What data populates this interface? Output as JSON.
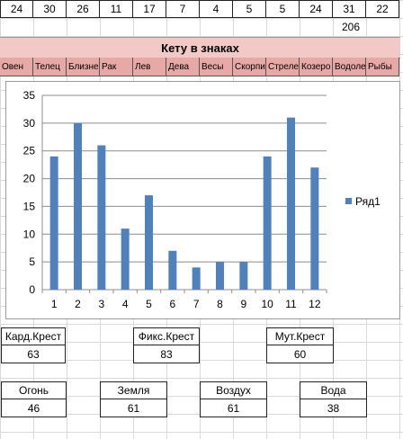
{
  "numbers_row": [
    "24",
    "30",
    "26",
    "11",
    "17",
    "7",
    "4",
    "5",
    "5",
    "24",
    "31",
    "22"
  ],
  "extra_value": "206",
  "banner": "Кету в знаках",
  "signs": [
    "Овен",
    "Телец",
    "Близне",
    "Рак",
    "Лев",
    "Дева",
    "Весы",
    "Скорпи",
    "Стреле",
    "Козеро",
    "Водоле",
    "Рыбы"
  ],
  "colors": {
    "bar": "#4f81bd",
    "band": "#f2c9c6",
    "signs_bg": "#e6a9a6"
  },
  "chart_data": {
    "type": "bar",
    "categories": [
      "1",
      "2",
      "3",
      "4",
      "5",
      "6",
      "7",
      "8",
      "9",
      "10",
      "11",
      "12"
    ],
    "series": [
      {
        "name": "Ряд1",
        "values": [
          24,
          30,
          26,
          11,
          17,
          7,
          4,
          5,
          5,
          24,
          31,
          22
        ]
      }
    ],
    "ylim": [
      0,
      35
    ],
    "yticks": [
      "0",
      "5",
      "10",
      "15",
      "20",
      "25",
      "30",
      "35"
    ],
    "grid": true,
    "legend": "right"
  },
  "crosses": [
    {
      "label": "Кард.Крест",
      "value": "63"
    },
    {
      "label": "Фикс.Крест",
      "value": "83"
    },
    {
      "label": "Мут.Крест",
      "value": "60"
    }
  ],
  "elements": [
    {
      "label": "Огонь",
      "value": "46"
    },
    {
      "label": "Земля",
      "value": "61"
    },
    {
      "label": "Воздух",
      "value": "61"
    },
    {
      "label": "Вода",
      "value": "38"
    }
  ]
}
